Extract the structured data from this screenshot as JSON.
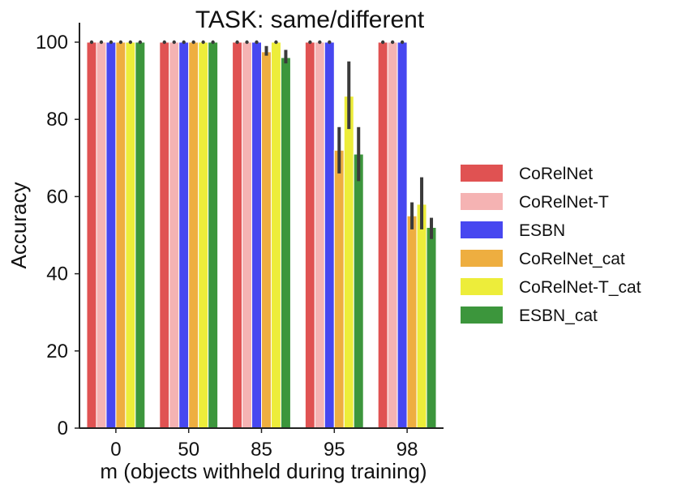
{
  "chart_data": {
    "type": "bar",
    "title": "TASK: same/different",
    "xlabel": "m (objects withheld during training)",
    "ylabel": "Accuracy",
    "ylim": [
      0,
      105
    ],
    "yticks": [
      0,
      20,
      40,
      60,
      80,
      100
    ],
    "categories": [
      "0",
      "50",
      "85",
      "95",
      "98"
    ],
    "legend_position": "right",
    "series": [
      {
        "name": "CoRelNet",
        "color": "#e05252",
        "values": [
          100,
          100,
          100,
          100,
          100
        ],
        "err_low": [
          100,
          100,
          100,
          100,
          100
        ],
        "err_high": [
          100,
          100,
          100,
          100,
          100
        ]
      },
      {
        "name": "CoRelNet-T",
        "color": "#f5b3b3",
        "values": [
          100,
          100,
          100,
          100,
          100
        ],
        "err_low": [
          100,
          100,
          100,
          100,
          100
        ],
        "err_high": [
          100,
          100,
          100,
          100,
          100
        ]
      },
      {
        "name": "ESBN",
        "color": "#4747f0",
        "values": [
          100,
          100,
          100,
          100,
          100
        ],
        "err_low": [
          100,
          100,
          100,
          100,
          100
        ],
        "err_high": [
          100,
          100,
          100,
          100,
          100
        ]
      },
      {
        "name": "CoRelNet_cat",
        "color": "#eeae40",
        "values": [
          100,
          100,
          97.5,
          72,
          55
        ],
        "err_low": [
          100,
          100,
          96.5,
          66,
          51.5
        ],
        "err_high": [
          100,
          100,
          99,
          78,
          58.5
        ]
      },
      {
        "name": "CoRelNet-T_cat",
        "color": "#eded3a",
        "values": [
          100,
          100,
          100,
          86,
          58
        ],
        "err_low": [
          100,
          100,
          100,
          77.5,
          51.5
        ],
        "err_high": [
          100,
          100,
          100,
          95,
          65
        ]
      },
      {
        "name": "ESBN_cat",
        "color": "#3c963c",
        "values": [
          100,
          100,
          96,
          71,
          52
        ],
        "err_low": [
          100,
          100,
          94.5,
          64,
          49
        ],
        "err_high": [
          100,
          100,
          98,
          78,
          54.5
        ]
      }
    ]
  }
}
